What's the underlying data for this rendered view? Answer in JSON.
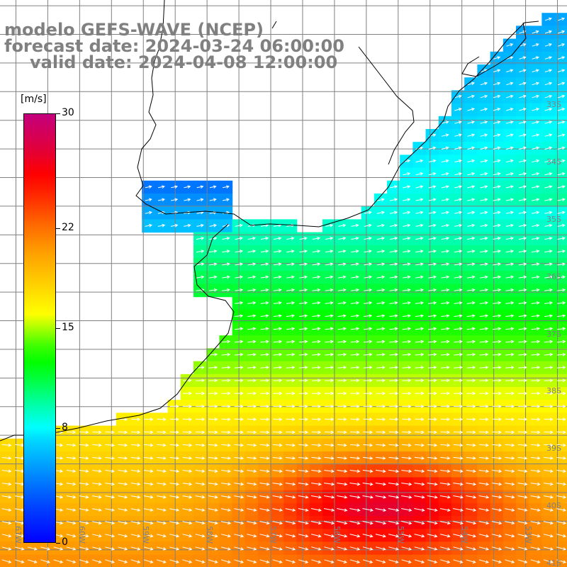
{
  "title": {
    "line1": "modelo GEFS-WAVE (NCEP)",
    "line2": "forecast date: 2024-03-24 06:00:00",
    "line3": "valid date: 2024-04-08 12:00:00"
  },
  "colorbar": {
    "unit": "[m/s]",
    "min": 0,
    "max": 30,
    "ticks": [
      "30",
      "22",
      "15",
      "8",
      "0"
    ],
    "tick_values": [
      30,
      22,
      15,
      8,
      0
    ]
  },
  "axes": {
    "lat_labels": [
      "33S",
      "34S",
      "35S",
      "36S",
      "37S",
      "38S",
      "39S",
      "40S",
      "41S"
    ],
    "lat_values": [
      -33,
      -34,
      -35,
      -36,
      -37,
      -38,
      -39,
      -40,
      -41
    ],
    "lon_labels": [
      "61W",
      "60W",
      "59W",
      "58W",
      "57W",
      "56W",
      "55W",
      "54W",
      "53W"
    ],
    "lon_values": [
      -61,
      -60,
      -59,
      -58,
      -57,
      -56,
      -55,
      -54,
      -53
    ],
    "lon_range": [
      -61.25,
      -52.35
    ],
    "lat_range": [
      -41.3,
      -31.4
    ]
  },
  "colors": {
    "grid": "#808080",
    "coast": "#000000",
    "arrow": "#ffffff",
    "land": "#ffffff",
    "title": "#808080"
  },
  "field": {
    "variable": "wind speed",
    "units": "m/s",
    "arrow_direction": "toward east-northeast, turning east-southeast in the south"
  }
}
